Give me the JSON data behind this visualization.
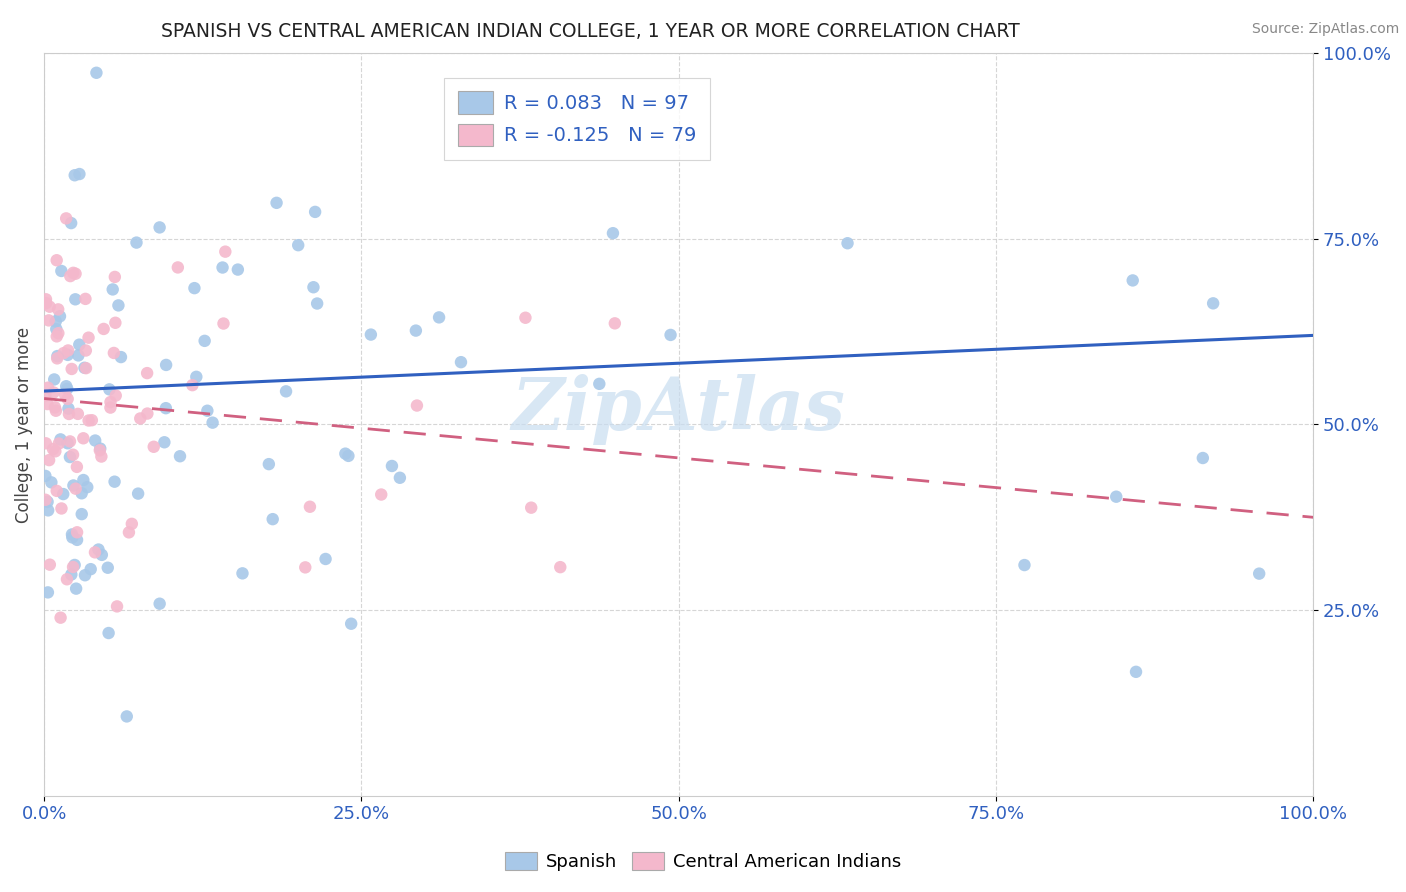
{
  "title": "SPANISH VS CENTRAL AMERICAN INDIAN COLLEGE, 1 YEAR OR MORE CORRELATION CHART",
  "source": "Source: ZipAtlas.com",
  "ylabel": "College, 1 year or more",
  "legend_r_spanish": "R = 0.083",
  "legend_n_spanish": "N = 97",
  "legend_r_cai": "R = -0.125",
  "legend_n_cai": "N = 79",
  "spanish_color": "#a8c8e8",
  "cai_color": "#f4b8cc",
  "spanish_line_color": "#3060c0",
  "cai_line_color": "#d06080",
  "text_color": "#3060c0",
  "grid_color": "#cccccc",
  "watermark": "ZipAtlas",
  "watermark_color": "#c8ddf0",
  "R_spanish": 0.083,
  "N_spanish": 97,
  "R_cai": -0.125,
  "N_cai": 79,
  "xlim": [
    0.0,
    1.0
  ],
  "ylim": [
    0.0,
    1.0
  ],
  "xticks": [
    0.0,
    0.25,
    0.5,
    0.75,
    1.0
  ],
  "yticks": [
    0.25,
    0.5,
    0.75,
    1.0
  ],
  "xticklabels": [
    "0.0%",
    "25.0%",
    "50.0%",
    "75.0%",
    "100.0%"
  ],
  "yticklabels": [
    "25.0%",
    "50.0%",
    "75.0%",
    "100.0%"
  ],
  "bottom_labels": [
    "Spanish",
    "Central American Indians"
  ]
}
